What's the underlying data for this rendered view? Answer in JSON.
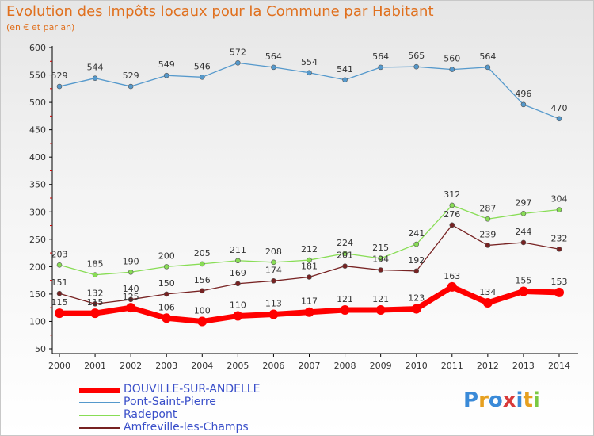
{
  "title": "Evolution des Impôts locaux pour la Commune par Habitant",
  "subtitle": "(en € et par an)",
  "logo": {
    "letters": [
      {
        "ch": "P",
        "color": "#3a8ad8"
      },
      {
        "ch": "r",
        "color": "#e6a020"
      },
      {
        "ch": "o",
        "color": "#3a8ad8"
      },
      {
        "ch": "x",
        "color": "#d83a3a"
      },
      {
        "ch": "i",
        "color": "#3a8ad8"
      },
      {
        "ch": "t",
        "color": "#e6a020"
      },
      {
        "ch": "i",
        "color": "#7ac943"
      }
    ]
  },
  "chart_data": {
    "type": "line",
    "title": "Evolution des Impôts locaux pour la Commune par Habitant",
    "subtitle": "(en € et par an)",
    "xlabel": "",
    "ylabel": "",
    "x": [
      2000,
      2001,
      2002,
      2003,
      2004,
      2005,
      2006,
      2007,
      2008,
      2009,
      2010,
      2011,
      2012,
      2013,
      2014
    ],
    "ylim": [
      50,
      600
    ],
    "yticks": [
      50,
      100,
      150,
      200,
      250,
      300,
      350,
      400,
      450,
      500,
      550,
      600
    ],
    "grid": false,
    "legend_position": "bottom-left",
    "series": [
      {
        "name": "DOUVILLE-SUR-ANDELLE",
        "color": "#ff0000",
        "values": [
          115,
          115,
          125,
          106,
          100,
          110,
          113,
          117,
          121,
          121,
          123,
          163,
          134,
          155,
          153
        ],
        "labels": [
          "115",
          "115",
          "125",
          "106",
          "100",
          "110",
          "113",
          "117",
          "121",
          "121",
          "123",
          "163",
          "134",
          "155",
          "153"
        ]
      },
      {
        "name": "Pont-Saint-Pierre",
        "color": "#5599cc",
        "values": [
          529,
          544,
          529,
          549,
          546,
          572,
          564,
          554,
          541,
          564,
          565,
          560,
          564,
          496,
          470
        ],
        "labels": [
          "529",
          "544",
          "529",
          "549",
          "546",
          "572",
          "564",
          "554",
          "541",
          "564",
          "565",
          "560",
          "564",
          "496",
          "470"
        ]
      },
      {
        "name": "Radepont",
        "color": "#88dd55",
        "values": [
          203,
          185,
          190,
          200,
          205,
          211,
          208,
          212,
          224,
          215,
          241,
          312,
          287,
          297,
          304
        ],
        "labels": [
          "203",
          "185",
          "190",
          "200",
          "205",
          "211",
          "208",
          "212",
          "224",
          "215",
          "241",
          "312",
          "287",
          "297",
          "304"
        ]
      },
      {
        "name": "Amfreville-les-Champs",
        "color": "#772222",
        "values": [
          151,
          132,
          140,
          150,
          156,
          169,
          174,
          181,
          201,
          194,
          192,
          276,
          239,
          244,
          232
        ],
        "labels": [
          "151",
          "132",
          "140",
          "150",
          "156",
          "169",
          "174",
          "181",
          "201",
          "194",
          "192",
          "276",
          "239",
          "244",
          "232"
        ]
      }
    ]
  }
}
